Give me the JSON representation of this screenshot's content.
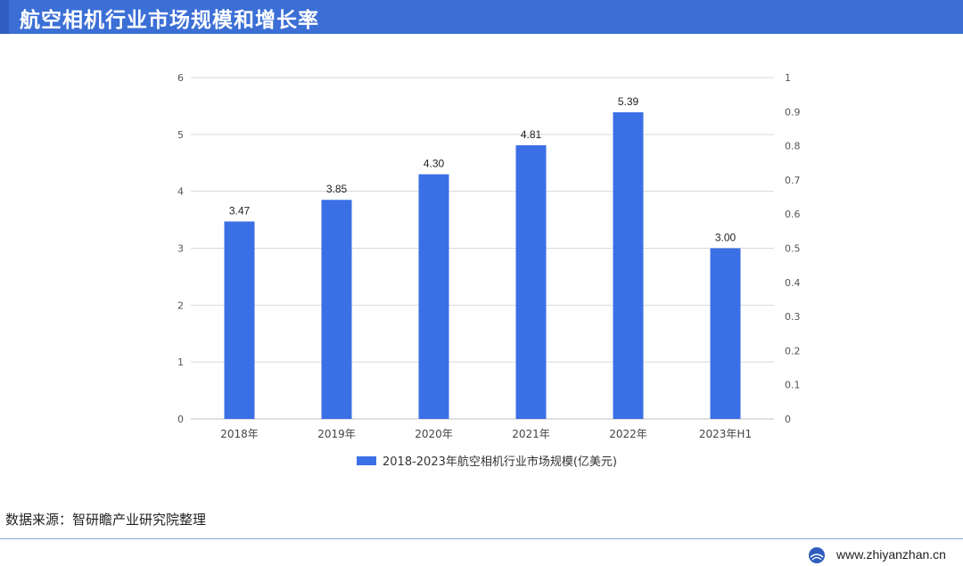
{
  "header": {
    "title": "航空相机行业市场规模和增长率"
  },
  "source": "数据来源：智研瞻产业研究院整理",
  "footer": {
    "url": "www.zhiyanzhan.cn"
  },
  "colors": {
    "bar": "#3b6fe6",
    "header": "#3b6fd6",
    "grid": "#d9d9d9"
  },
  "chart_data": {
    "type": "bar",
    "categories": [
      "2018年",
      "2019年",
      "2020年",
      "2021年",
      "2022年",
      "2023年H1"
    ],
    "series": [
      {
        "name": "2018-2023年航空相机行业市场规模(亿美元)",
        "values": [
          3.47,
          3.85,
          4.3,
          4.81,
          5.39,
          3.0
        ]
      }
    ],
    "data_labels": [
      "3.47",
      "3.85",
      "4.30",
      "4.81",
      "5.39",
      "3.00"
    ],
    "ylim": [
      0,
      6
    ],
    "y_ticks": [
      "0",
      "1",
      "2",
      "3",
      "4",
      "5",
      "6"
    ],
    "y2lim": [
      0,
      1
    ],
    "y2_ticks": [
      "0",
      "0.1",
      "0.2",
      "0.3",
      "0.4",
      "0.5",
      "0.6",
      "0.7",
      "0.8",
      "0.9",
      "1"
    ],
    "grid": true,
    "legend": "bottom"
  }
}
